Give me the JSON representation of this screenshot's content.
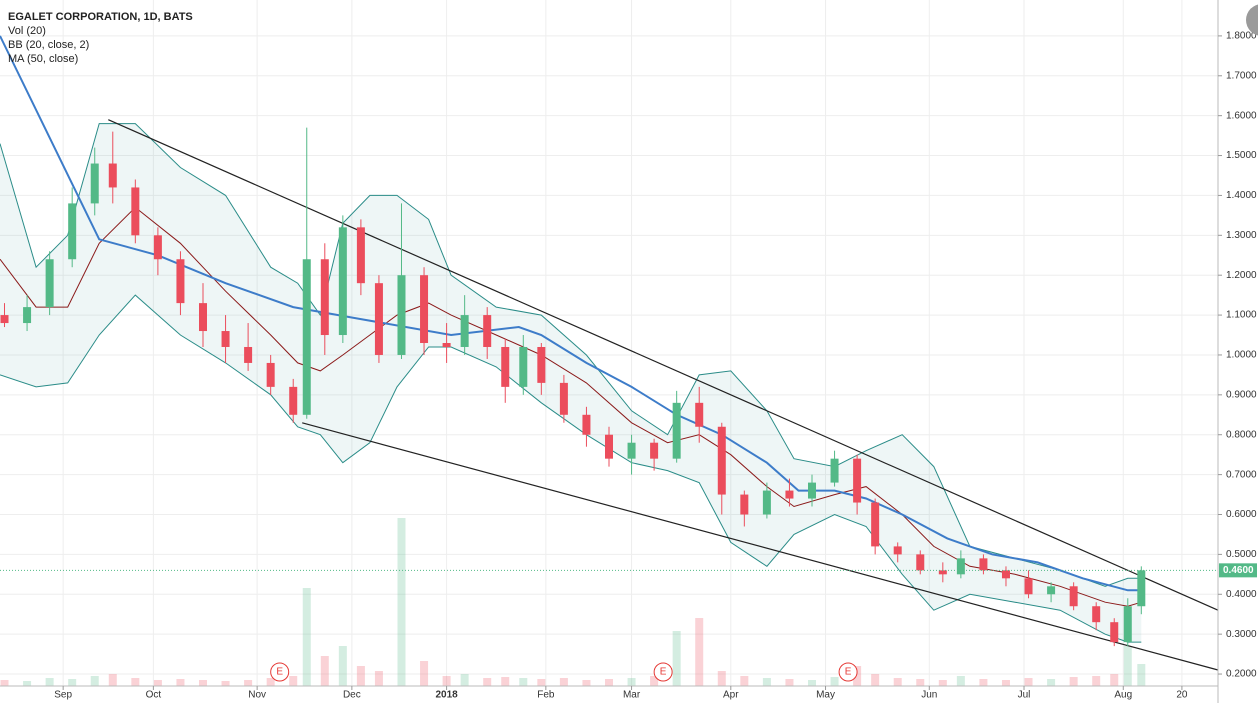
{
  "chart_data": {
    "type": "candlestick",
    "title": "EGALET CORPORATION, 1D, BATS",
    "xlim": [
      0,
      270
    ],
    "ylim": [
      0.17,
      1.89
    ],
    "grid": true,
    "xticks": [
      {
        "value": 14,
        "label": "Sep"
      },
      {
        "value": 34,
        "label": "Oct"
      },
      {
        "value": 57,
        "label": "Nov"
      },
      {
        "value": 78,
        "label": "Dec"
      },
      {
        "value": 99,
        "label": "2018"
      },
      {
        "value": 121,
        "label": "Feb"
      },
      {
        "value": 140,
        "label": "Mar"
      },
      {
        "value": 162,
        "label": "Apr"
      },
      {
        "value": 183,
        "label": "May"
      },
      {
        "value": 206,
        "label": "Jun"
      },
      {
        "value": 227,
        "label": "Jul"
      },
      {
        "value": 249,
        "label": "Aug"
      },
      {
        "value": 262,
        "label": "20"
      }
    ],
    "yticks": [
      {
        "value": 0.2,
        "label": "0.2000"
      },
      {
        "value": 0.3,
        "label": "0.3000"
      },
      {
        "value": 0.4,
        "label": "0.4000"
      },
      {
        "value": 0.5,
        "label": "0.5000"
      },
      {
        "value": 0.6,
        "label": "0.6000"
      },
      {
        "value": 0.7,
        "label": "0.7000"
      },
      {
        "value": 0.8,
        "label": "0.8000"
      },
      {
        "value": 0.9,
        "label": "0.9000"
      },
      {
        "value": 1.0,
        "label": "1.0000"
      },
      {
        "value": 1.1,
        "label": "1.1000"
      },
      {
        "value": 1.2,
        "label": "1.2000"
      },
      {
        "value": 1.3,
        "label": "1.3000"
      },
      {
        "value": 1.4,
        "label": "1.4000"
      },
      {
        "value": 1.5,
        "label": "1.5000"
      },
      {
        "value": 1.6,
        "label": "1.6000"
      },
      {
        "value": 1.7,
        "label": "1.7000"
      },
      {
        "value": 1.8,
        "label": "1.8000"
      }
    ],
    "up_color": "#53b987",
    "down_color": "#eb4d5c",
    "x": [
      1,
      6,
      11,
      16,
      21,
      25,
      30,
      35,
      40,
      45,
      50,
      55,
      60,
      65,
      68,
      72,
      76,
      80,
      84,
      89,
      94,
      99,
      103,
      108,
      112,
      116,
      120,
      125,
      130,
      135,
      140,
      145,
      150,
      155,
      160,
      165,
      170,
      175,
      180,
      185,
      190,
      194,
      199,
      204,
      209,
      213,
      218,
      223,
      228,
      233,
      238,
      243,
      247,
      250,
      253
    ],
    "open": [
      1.1,
      1.08,
      1.12,
      1.24,
      1.38,
      1.48,
      1.42,
      1.3,
      1.24,
      1.13,
      1.06,
      1.02,
      0.98,
      0.92,
      0.85,
      1.24,
      1.05,
      1.32,
      1.18,
      1.0,
      1.2,
      1.03,
      1.02,
      1.1,
      1.02,
      0.92,
      1.02,
      0.93,
      0.85,
      0.8,
      0.74,
      0.78,
      0.74,
      0.88,
      0.82,
      0.65,
      0.6,
      0.66,
      0.64,
      0.68,
      0.74,
      0.63,
      0.52,
      0.5,
      0.46,
      0.45,
      0.49,
      0.46,
      0.44,
      0.4,
      0.42,
      0.37,
      0.33,
      0.28,
      0.37
    ],
    "high": [
      1.13,
      1.15,
      1.26,
      1.42,
      1.52,
      1.56,
      1.44,
      1.32,
      1.26,
      1.18,
      1.1,
      1.08,
      1.0,
      0.94,
      1.57,
      1.28,
      1.35,
      1.34,
      1.2,
      1.38,
      1.22,
      1.08,
      1.15,
      1.12,
      1.04,
      1.05,
      1.03,
      0.95,
      0.87,
      0.82,
      0.8,
      0.79,
      0.91,
      0.92,
      0.83,
      0.66,
      0.68,
      0.69,
      0.7,
      0.76,
      0.75,
      0.64,
      0.53,
      0.51,
      0.48,
      0.51,
      0.5,
      0.47,
      0.46,
      0.43,
      0.43,
      0.38,
      0.34,
      0.39,
      0.47
    ],
    "low": [
      1.07,
      1.06,
      1.1,
      1.22,
      1.35,
      1.38,
      1.28,
      1.2,
      1.1,
      1.02,
      0.98,
      0.96,
      0.9,
      0.83,
      0.84,
      1.0,
      1.03,
      1.15,
      0.98,
      0.99,
      1.0,
      0.98,
      1.0,
      0.99,
      0.88,
      0.9,
      0.9,
      0.83,
      0.77,
      0.72,
      0.7,
      0.71,
      0.73,
      0.78,
      0.6,
      0.57,
      0.59,
      0.62,
      0.62,
      0.67,
      0.6,
      0.5,
      0.48,
      0.45,
      0.43,
      0.44,
      0.45,
      0.42,
      0.39,
      0.38,
      0.36,
      0.31,
      0.27,
      0.27,
      0.35
    ],
    "close": [
      1.08,
      1.12,
      1.24,
      1.38,
      1.48,
      1.42,
      1.3,
      1.24,
      1.13,
      1.06,
      1.02,
      0.98,
      0.92,
      0.85,
      1.24,
      1.05,
      1.32,
      1.18,
      1.0,
      1.2,
      1.03,
      1.02,
      1.1,
      1.02,
      0.92,
      1.02,
      0.93,
      0.85,
      0.8,
      0.74,
      0.78,
      0.74,
      0.88,
      0.82,
      0.65,
      0.6,
      0.66,
      0.64,
      0.68,
      0.74,
      0.63,
      0.52,
      0.5,
      0.46,
      0.45,
      0.49,
      0.46,
      0.44,
      0.4,
      0.42,
      0.37,
      0.33,
      0.28,
      0.37,
      0.46
    ],
    "volume_panel": {
      "label": "Vol (20)",
      "ylim": [
        0,
        200
      ],
      "values": [
        6,
        5,
        8,
        7,
        10,
        12,
        8,
        6,
        7,
        6,
        5,
        6,
        8,
        10,
        98,
        30,
        40,
        20,
        15,
        168,
        25,
        10,
        12,
        8,
        9,
        8,
        7,
        8,
        6,
        7,
        8,
        10,
        55,
        68,
        15,
        10,
        8,
        7,
        6,
        9,
        20,
        12,
        8,
        7,
        6,
        10,
        7,
        6,
        8,
        7,
        9,
        10,
        12,
        40,
        22
      ]
    },
    "bollinger": {
      "label": "BB (20, close, 2)",
      "color": "#2a8c88",
      "basis_color": "#8b1a1a",
      "x": [
        0,
        8,
        15,
        22,
        30,
        40,
        50,
        60,
        66,
        71,
        76,
        82,
        88,
        95,
        100,
        110,
        120,
        130,
        140,
        148,
        155,
        162,
        170,
        176,
        185,
        192,
        200,
        207,
        215,
        225,
        235,
        245,
        250,
        253
      ],
      "upper": [
        1.53,
        1.22,
        1.3,
        1.58,
        1.58,
        1.47,
        1.4,
        1.22,
        1.18,
        1.1,
        1.33,
        1.4,
        1.4,
        1.34,
        1.2,
        1.12,
        1.1,
        1.0,
        0.86,
        0.8,
        0.95,
        0.96,
        0.86,
        0.74,
        0.72,
        0.76,
        0.8,
        0.72,
        0.52,
        0.49,
        0.46,
        0.42,
        0.44,
        0.44
      ],
      "basis": [
        1.24,
        1.12,
        1.12,
        1.28,
        1.37,
        1.28,
        1.16,
        1.05,
        0.98,
        0.96,
        1.0,
        1.05,
        1.1,
        1.13,
        1.1,
        1.05,
        1.0,
        0.93,
        0.83,
        0.78,
        0.8,
        0.75,
        0.67,
        0.62,
        0.65,
        0.67,
        0.6,
        0.52,
        0.47,
        0.45,
        0.42,
        0.38,
        0.37,
        0.38
      ],
      "lower": [
        0.95,
        0.92,
        0.93,
        1.05,
        1.15,
        1.05,
        0.98,
        0.9,
        0.82,
        0.8,
        0.73,
        0.78,
        0.92,
        1.02,
        1.02,
        0.97,
        0.88,
        0.8,
        0.73,
        0.71,
        0.68,
        0.53,
        0.47,
        0.55,
        0.6,
        0.57,
        0.45,
        0.36,
        0.4,
        0.38,
        0.36,
        0.3,
        0.28,
        0.28
      ]
    },
    "ma": {
      "label": "MA (50, close)",
      "color": "#3d7cc9",
      "x": [
        0,
        22,
        35,
        50,
        65,
        80,
        100,
        115,
        120,
        130,
        140,
        150,
        160,
        170,
        177,
        185,
        192,
        200,
        210,
        220,
        230,
        240,
        250,
        253
      ],
      "values": [
        1.8,
        1.29,
        1.25,
        1.18,
        1.12,
        1.09,
        1.05,
        1.07,
        1.05,
        0.98,
        0.92,
        0.85,
        0.8,
        0.73,
        0.66,
        0.66,
        0.64,
        0.6,
        0.54,
        0.5,
        0.48,
        0.44,
        0.41,
        0.41
      ]
    },
    "trendlines": [
      {
        "x": [
          24,
          270
        ],
        "values": [
          1.59,
          0.36
        ]
      },
      {
        "x": [
          67,
          270
        ],
        "values": [
          0.83,
          0.21
        ]
      }
    ],
    "last_price": {
      "value": 0.46,
      "label": "0.4600"
    },
    "events": [
      {
        "x": 62,
        "label": "E"
      },
      {
        "x": 147,
        "label": "E"
      },
      {
        "x": 188,
        "label": "E"
      }
    ]
  }
}
